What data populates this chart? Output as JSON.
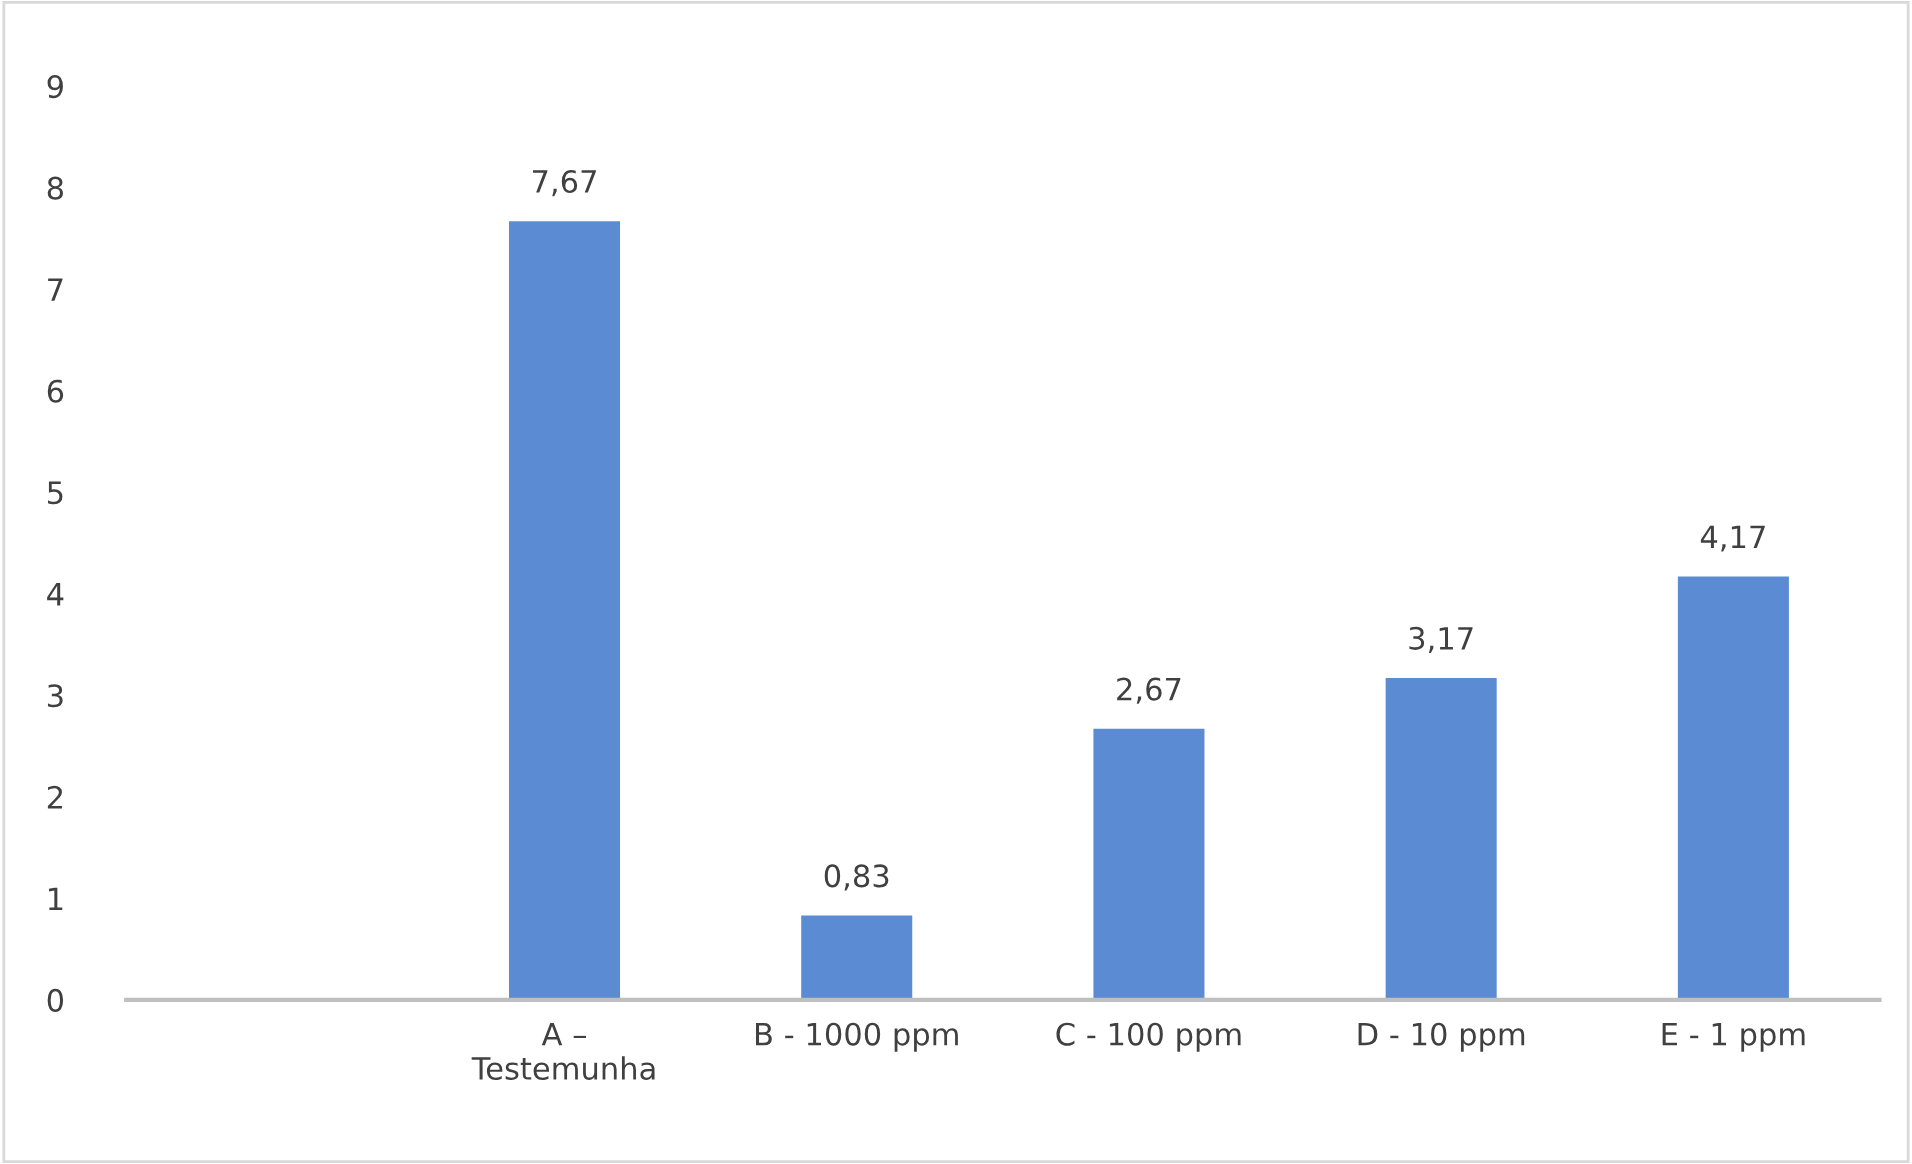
{
  "chart_data": {
    "type": "bar",
    "categories": [
      null,
      "A –\nTestemunha",
      "B - 1000 ppm",
      "C - 100 ppm",
      "D - 10 ppm",
      "E - 1 ppm"
    ],
    "values": [
      null,
      7.67,
      0.83,
      2.67,
      3.17,
      4.17
    ],
    "value_labels": [
      null,
      "7,67",
      "0,83",
      "2,67",
      "3,17",
      "4,17"
    ],
    "color": "#5b8bd3",
    "ylim": [
      0,
      9
    ],
    "yticks": [
      0,
      1,
      2,
      3,
      4,
      5,
      6,
      7,
      8,
      9
    ],
    "grid": false,
    "legend": false
  }
}
